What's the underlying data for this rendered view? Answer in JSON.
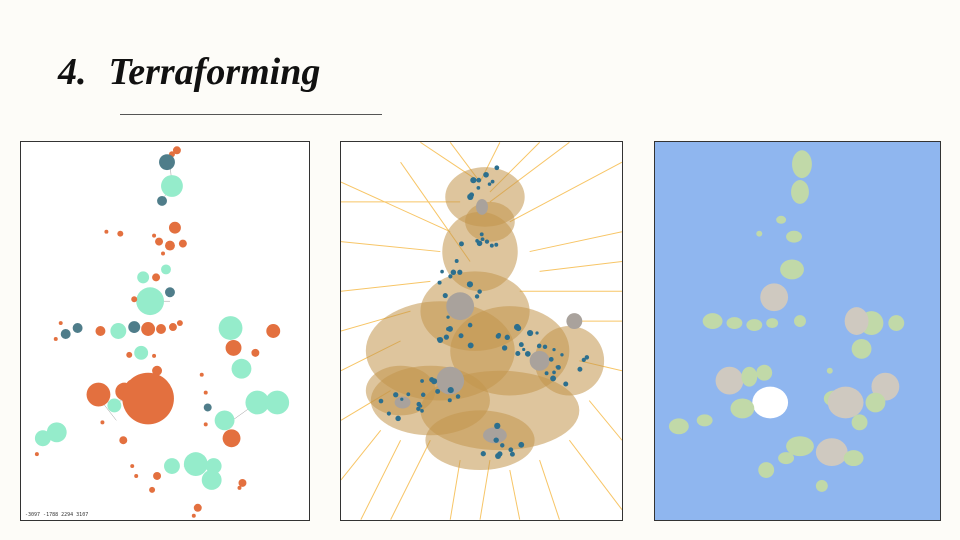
{
  "slide": {
    "number": "4.",
    "title": "Terraforming"
  },
  "panels": {
    "bubbles": {
      "coord_readout": "-3097 -1788 2294 3107",
      "colors": {
        "teal": "#4f7d8a",
        "mint": "#95eccb",
        "orange": "#e3703f"
      }
    },
    "voronoi": {
      "colors": {
        "edges": "#f7c566",
        "fill": "#c3954d",
        "gray": "#a9a29c",
        "dots": "#2c6f8e"
      }
    },
    "terrain": {
      "colors": {
        "ocean": "#8fb6ef",
        "green": "#c1d9a8",
        "gray": "#cfc9c0",
        "white": "#ffffff"
      }
    }
  }
}
